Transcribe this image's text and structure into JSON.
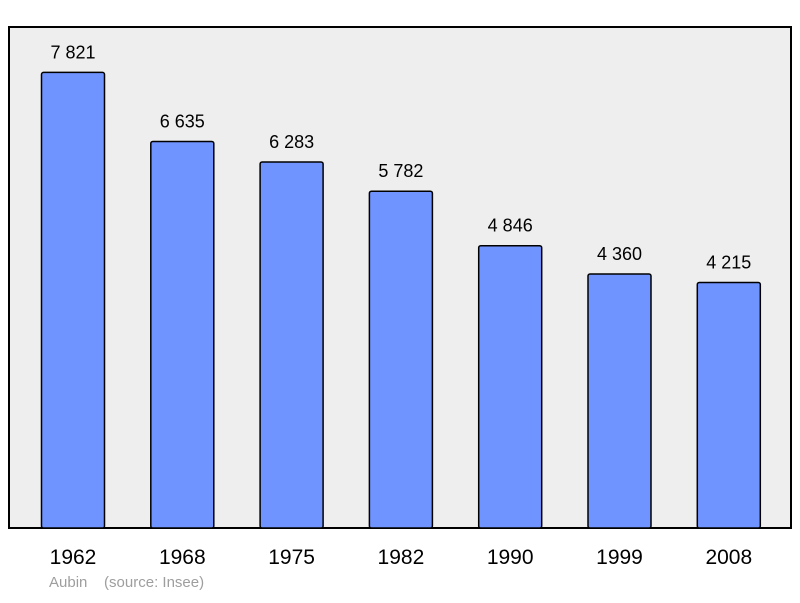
{
  "chart_data": {
    "type": "bar",
    "categories": [
      "1962",
      "1968",
      "1975",
      "1982",
      "1990",
      "1999",
      "2008"
    ],
    "values": [
      7821,
      6635,
      6283,
      5782,
      4846,
      4360,
      4215
    ],
    "value_labels": [
      "7 821",
      "6 635",
      "6 283",
      "5 782",
      "4 846",
      "4 360",
      "4 215"
    ],
    "ylim": [
      0,
      8600
    ],
    "grid": false,
    "colors": {
      "bar": "#7094ff",
      "bar_stroke": "#000000",
      "plot_background": "#eeeeee",
      "footer_text": "#9e9e9e"
    }
  },
  "footer": {
    "place": "Aubin",
    "source": "(source: Insee)"
  }
}
